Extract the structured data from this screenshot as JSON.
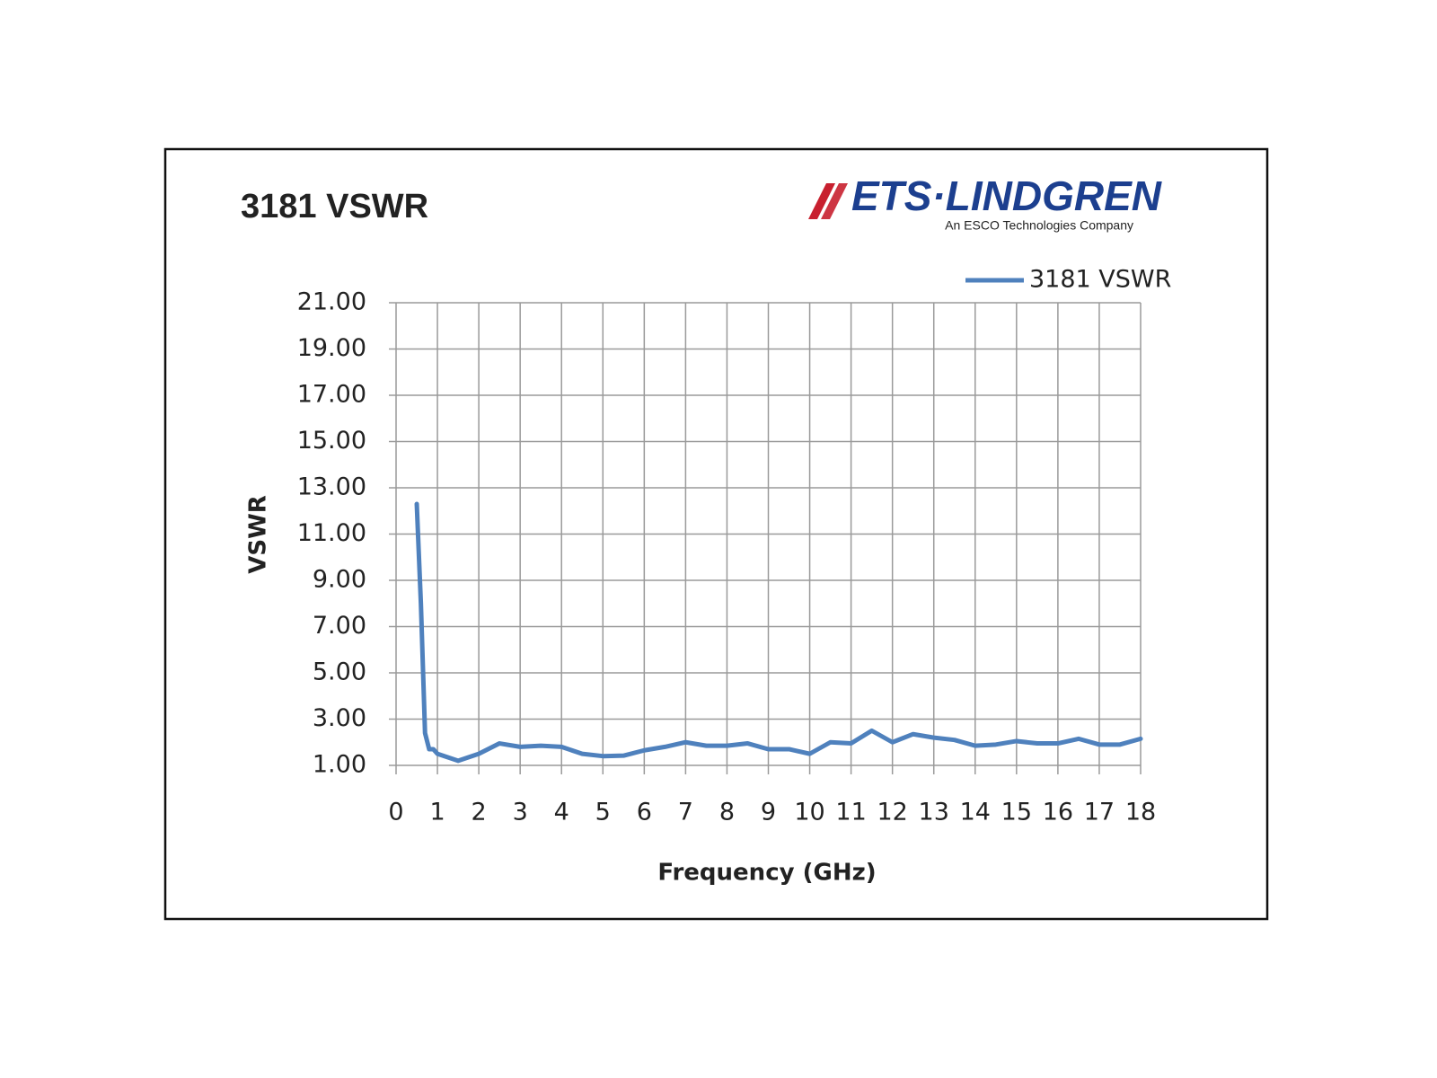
{
  "logo": {
    "name": "ETS·LINDGREN",
    "tagline": "An ESCO Technologies Company"
  },
  "chart_data": {
    "type": "line",
    "title": "3181 VSWR",
    "x_label": "Frequency (GHz)",
    "y_label": "VSWR",
    "x": [
      0.5,
      0.6,
      0.7,
      0.8,
      0.9,
      1,
      1.5,
      2,
      2.5,
      3,
      3.5,
      4,
      4.5,
      5,
      5.5,
      6,
      6.5,
      7,
      7.5,
      8,
      8.5,
      9,
      9.5,
      10,
      10.5,
      11,
      11.5,
      12,
      12.5,
      13,
      13.5,
      14,
      14.5,
      15,
      15.5,
      16,
      16.5,
      17,
      17.5,
      18
    ],
    "series": [
      {
        "name": "3181 VSWR",
        "color": "#4f81bd",
        "values": [
          12.3,
          8,
          2.4,
          1.7,
          1.7,
          1.5,
          1.2,
          1.5,
          1.95,
          1.8,
          1.85,
          1.8,
          1.5,
          1.4,
          1.42,
          1.65,
          1.8,
          2.0,
          1.85,
          1.85,
          1.95,
          1.7,
          1.7,
          1.5,
          2.0,
          1.95,
          2.5,
          2.0,
          2.35,
          2.2,
          2.1,
          1.85,
          1.9,
          2.05,
          1.95,
          1.95,
          2.15,
          1.9,
          1.9,
          2.15
        ]
      }
    ],
    "xlim": [
      0,
      18
    ],
    "xticks": [
      0,
      1,
      2,
      3,
      4,
      5,
      6,
      7,
      8,
      9,
      10,
      11,
      12,
      13,
      14,
      15,
      16,
      17,
      18
    ],
    "ylim": [
      1,
      21
    ],
    "yticks": [
      {
        "value": 1,
        "label": "1.00"
      },
      {
        "value": 3,
        "label": "3.00"
      },
      {
        "value": 5,
        "label": "5.00"
      },
      {
        "value": 7,
        "label": "7.00"
      },
      {
        "value": 9,
        "label": "9.00"
      },
      {
        "value": 11,
        "label": "11.00"
      },
      {
        "value": 13,
        "label": "13.00"
      },
      {
        "value": 15,
        "label": "15.00"
      },
      {
        "value": 17,
        "label": "17.00"
      },
      {
        "value": 19,
        "label": "19.00"
      },
      {
        "value": 21,
        "label": "21.00"
      }
    ],
    "grid": true,
    "legend": "top-right"
  }
}
